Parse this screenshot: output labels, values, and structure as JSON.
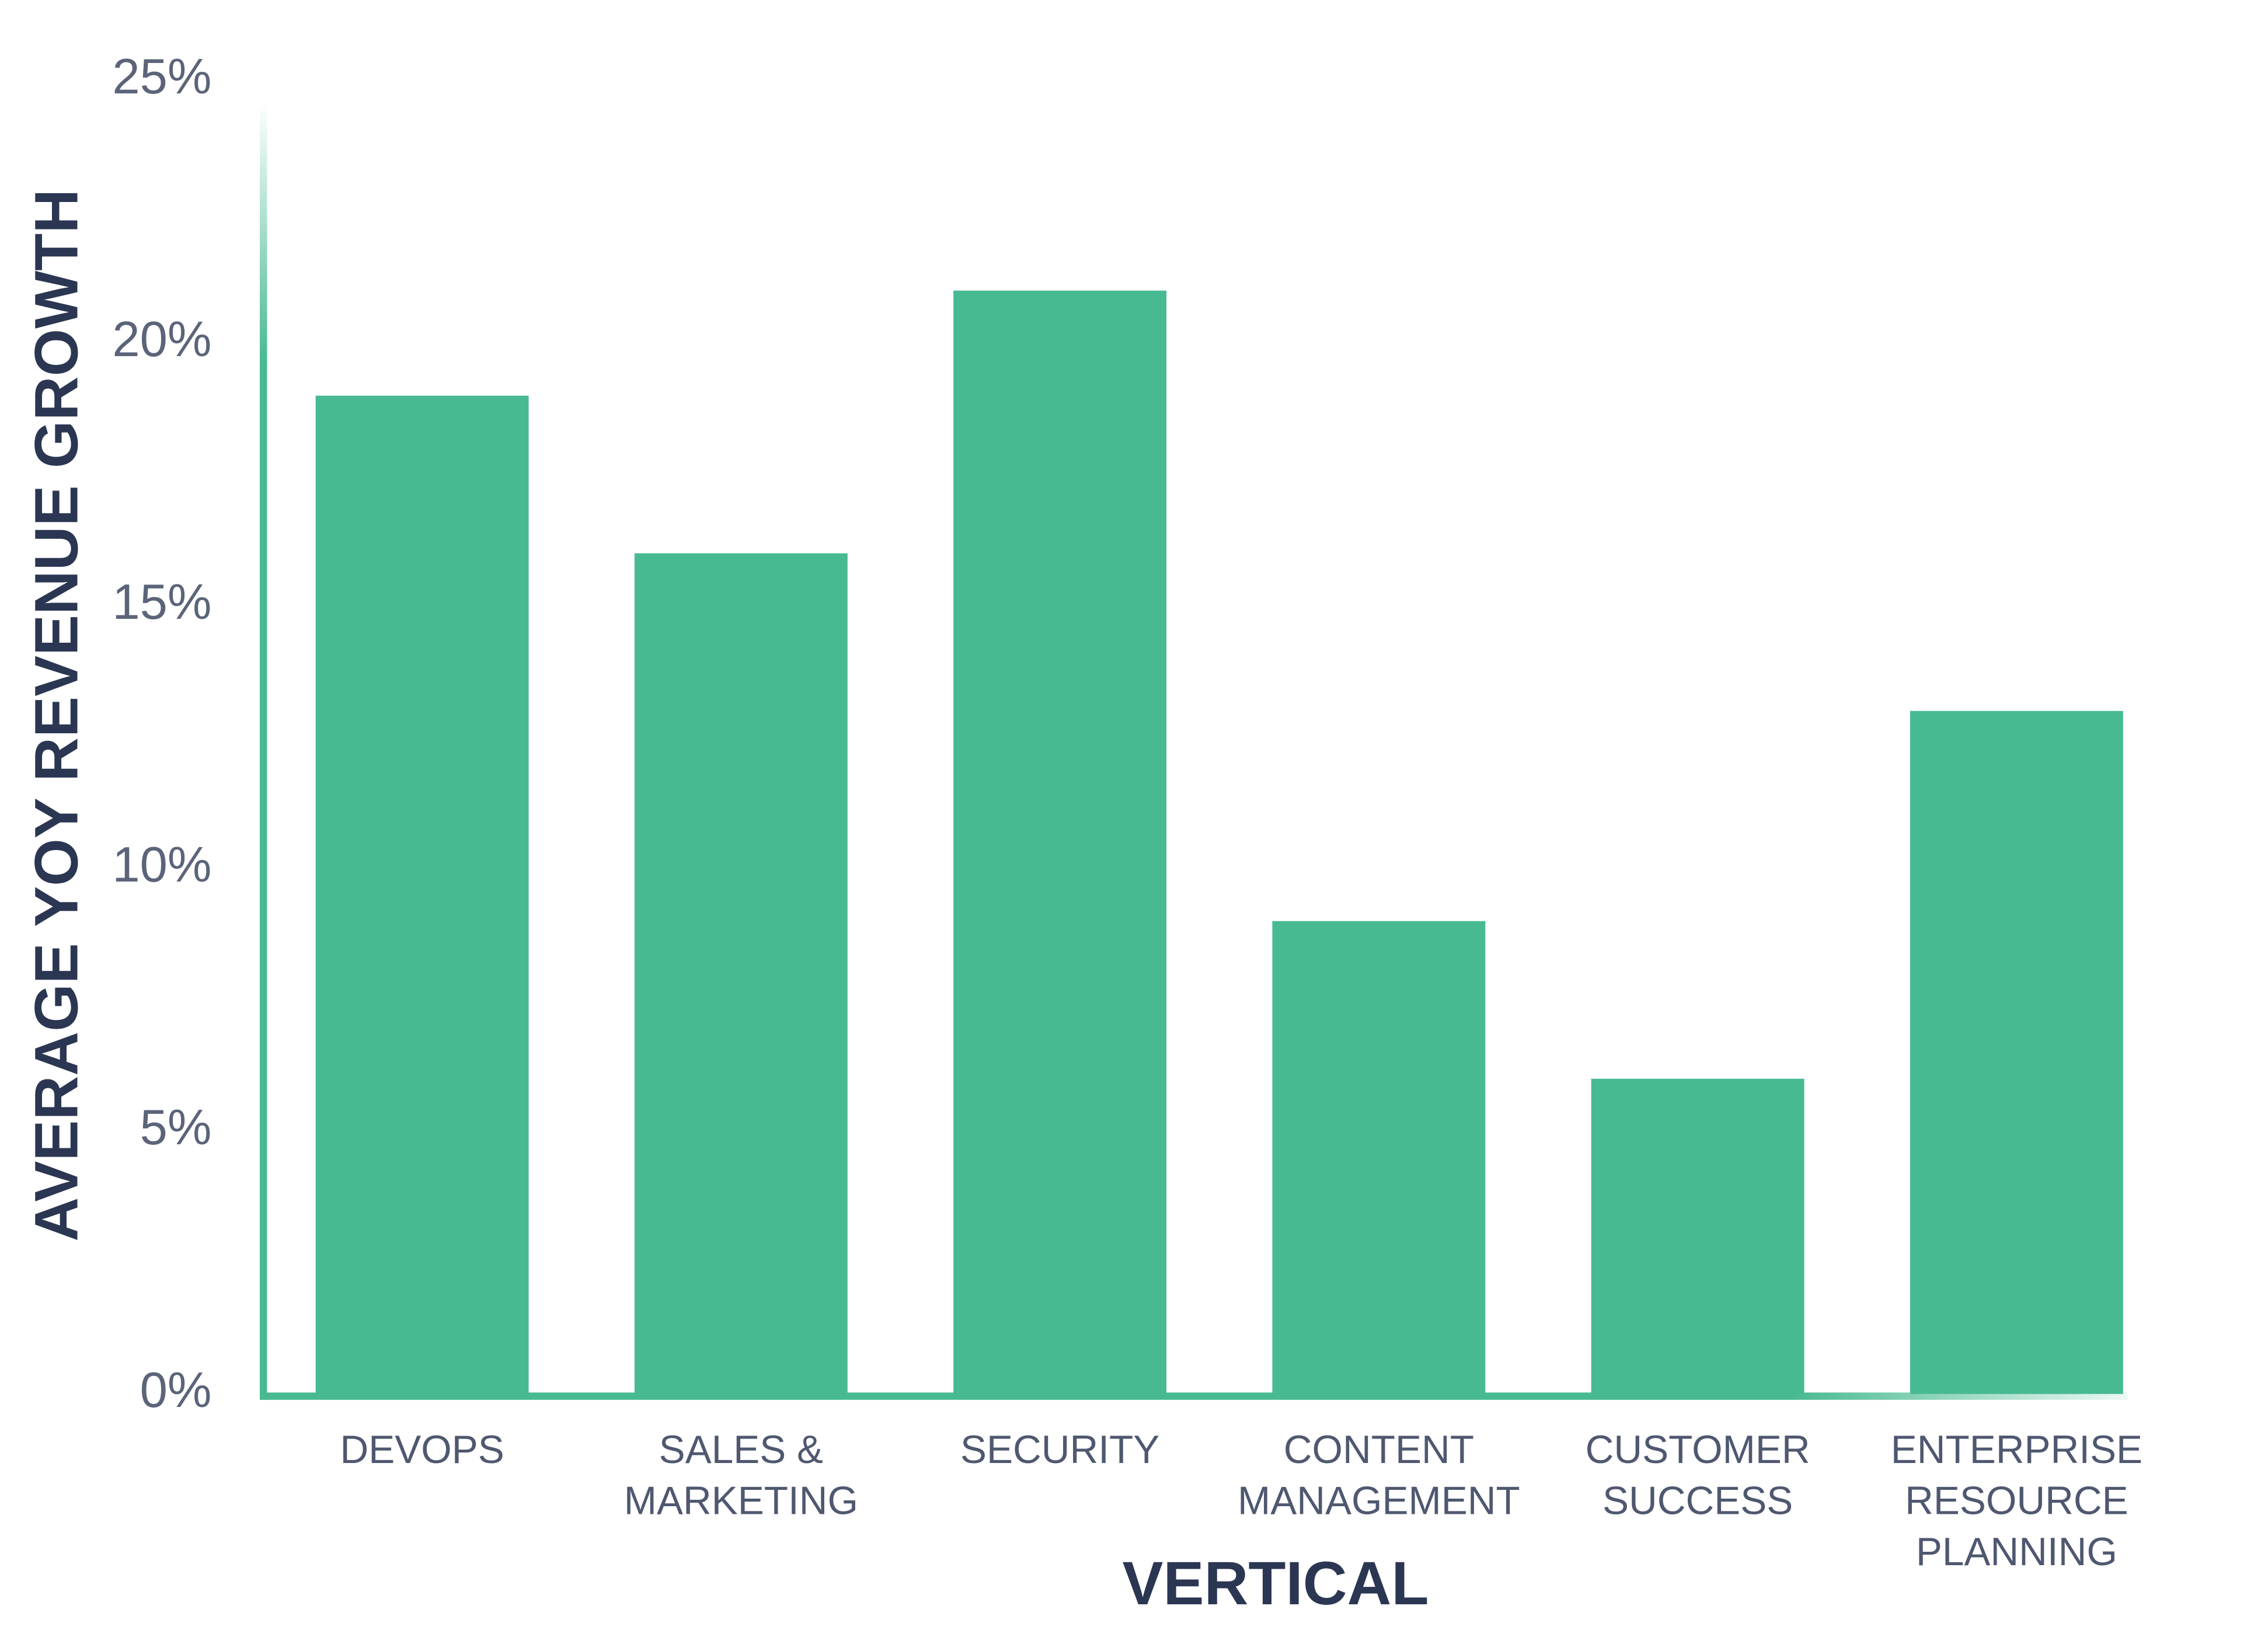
{
  "chart_data": {
    "type": "bar",
    "categories": [
      "DEVOPS",
      "SALES & MARKETING",
      "SECURITY",
      "CONTENT MANAGEMENT",
      "CUSTOMER SUCCESS",
      "ENTERPRISE RESOURCE PLANNING"
    ],
    "values": [
      19,
      16,
      21,
      9,
      6,
      13
    ],
    "color": "#48ba91",
    "x_label": "VERTICAL",
    "y_label": "AVERAGE YOY REVENUE GROWTH",
    "ylim": [
      0,
      25
    ],
    "yticks": [
      {
        "value": 0,
        "label": "0%"
      },
      {
        "value": 5,
        "label": "5%"
      },
      {
        "value": 10,
        "label": "10%"
      },
      {
        "value": 15,
        "label": "15%"
      },
      {
        "value": 20,
        "label": "20%"
      },
      {
        "value": 25,
        "label": "25%"
      }
    ],
    "grid": false
  }
}
